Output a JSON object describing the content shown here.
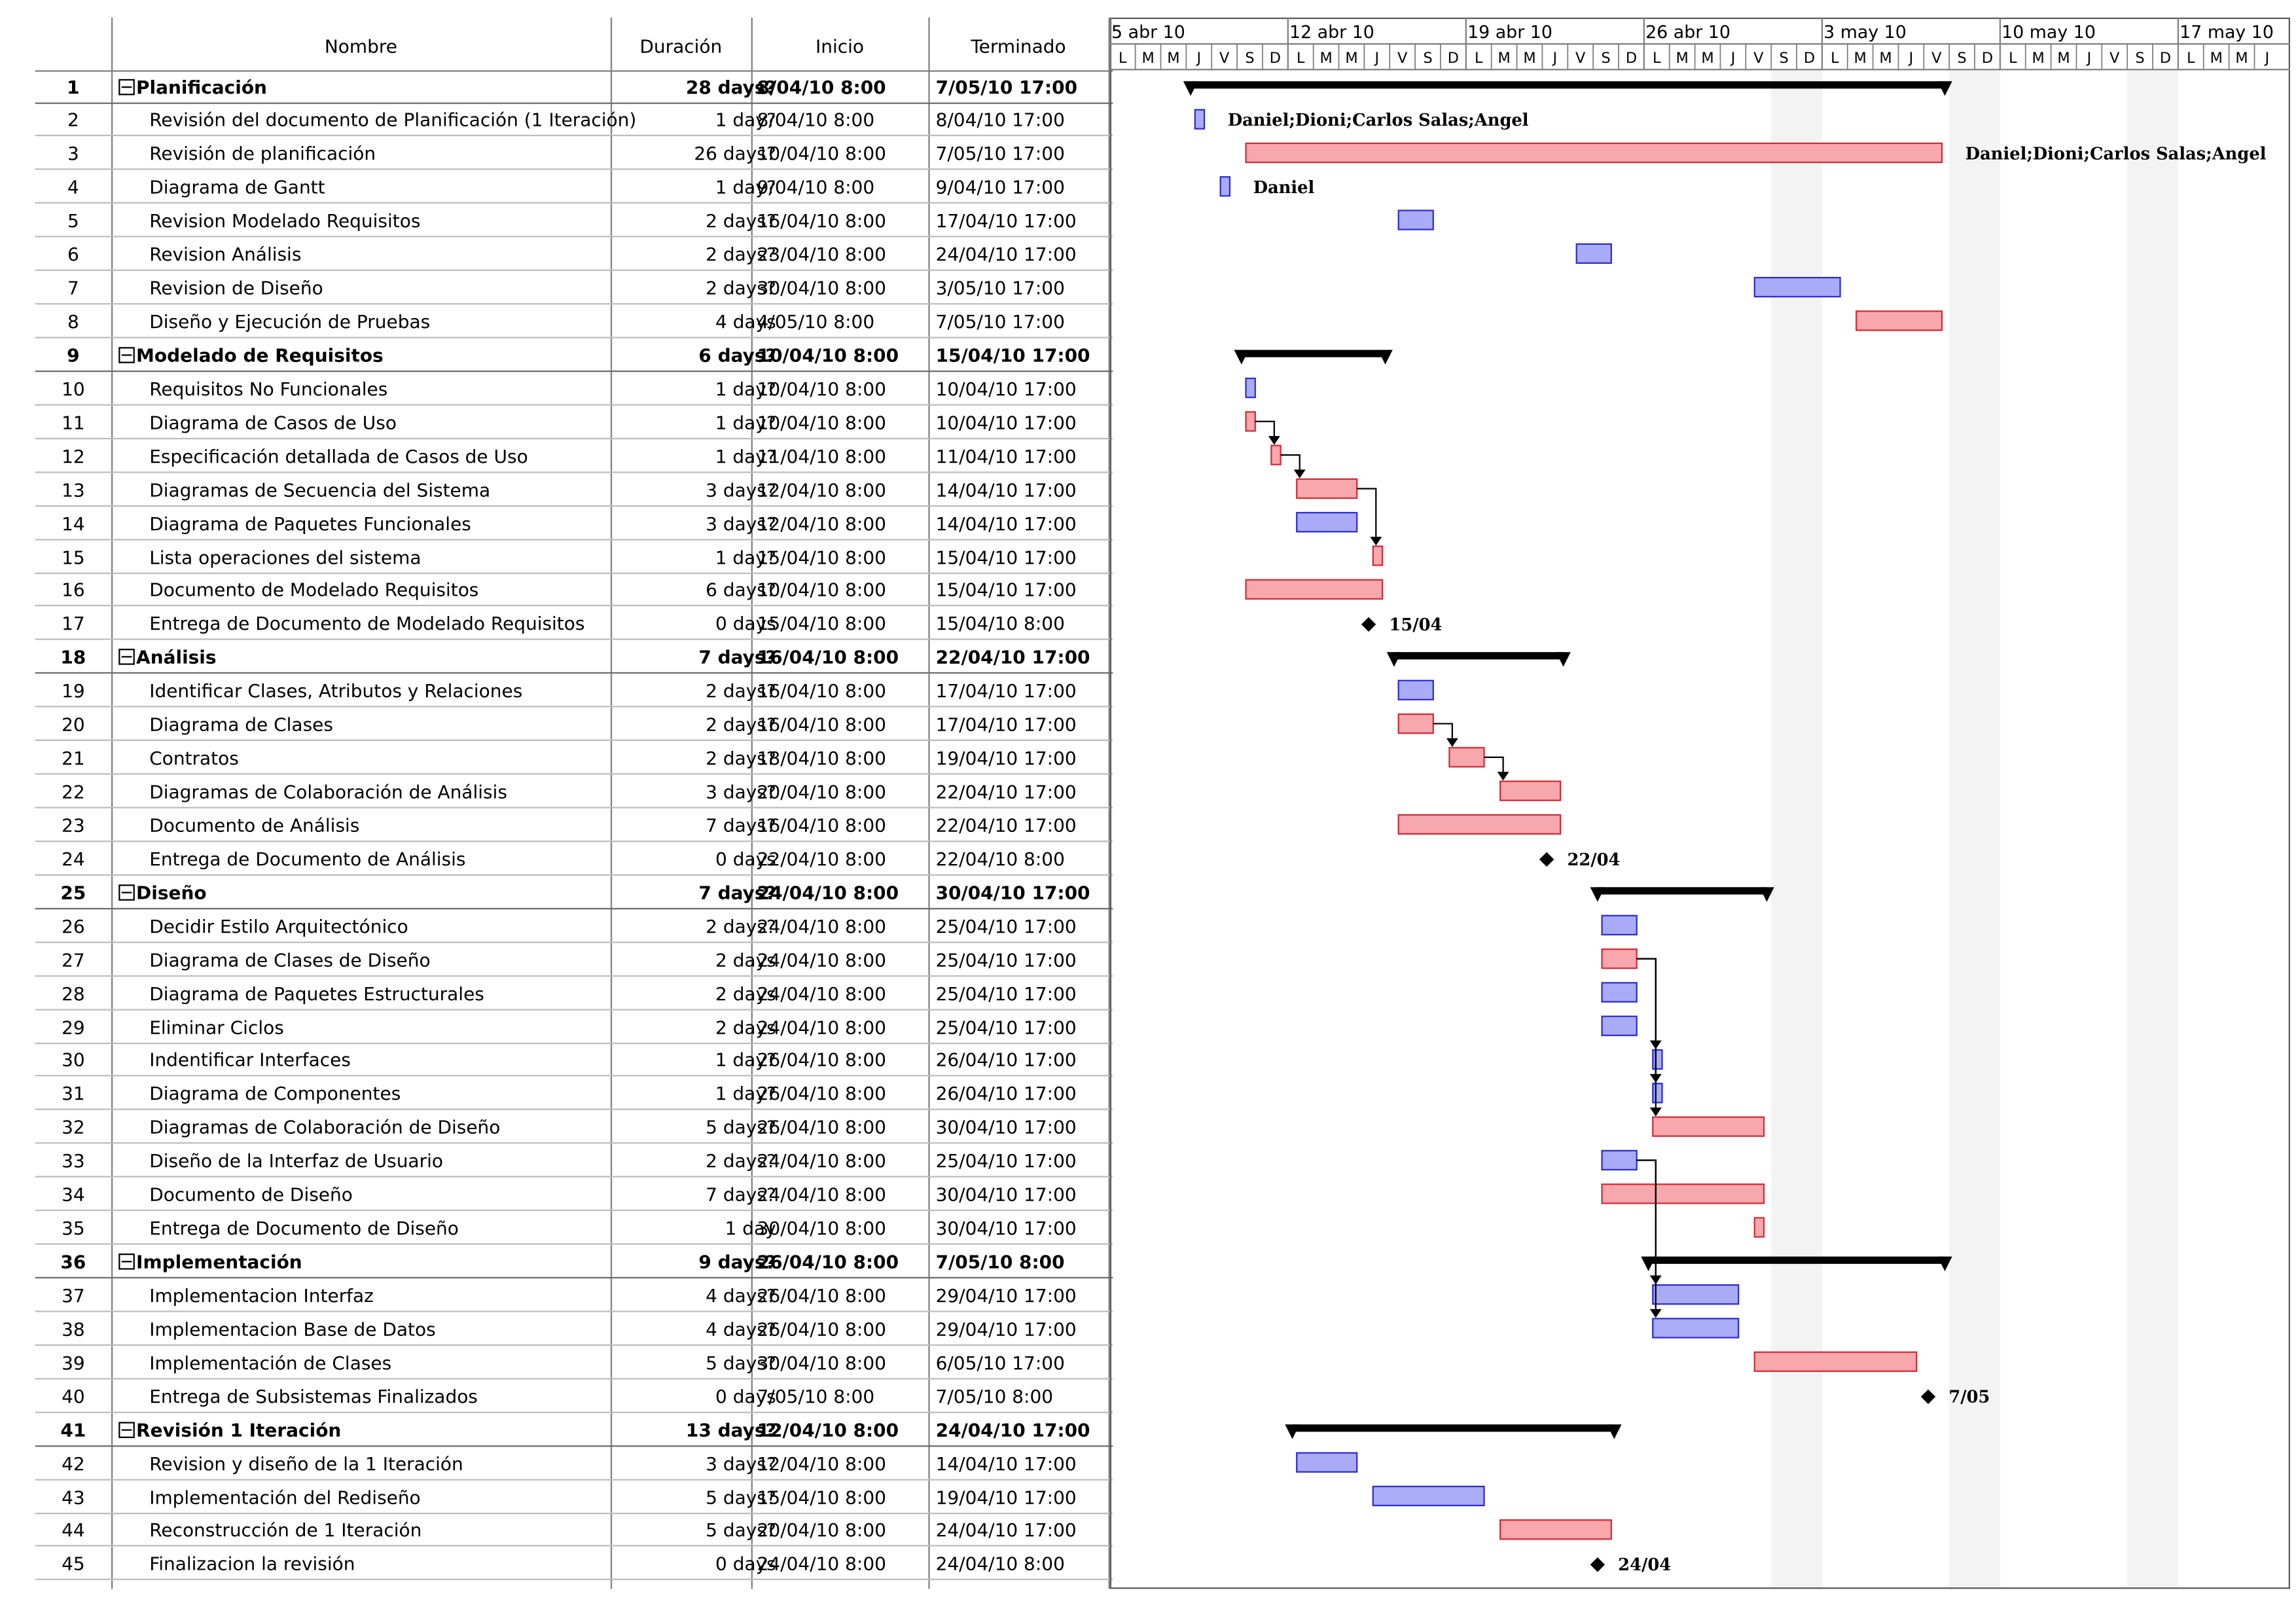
{
  "table": {
    "headers": {
      "name": "Nombre",
      "duration": "Duración",
      "start": "Inicio",
      "end": "Terminado"
    },
    "rows": [
      {
        "id": "1",
        "name": "Planificación",
        "duration": "28 days?",
        "start": "8/04/10 8:00",
        "end": "7/05/10 17:00",
        "summary": true
      },
      {
        "id": "2",
        "name": "Revisión del documento de Planificación (1 Iteración)",
        "duration": "1 day?",
        "start": "8/04/10 8:00",
        "end": "8/04/10 17:00"
      },
      {
        "id": "3",
        "name": "Revisión de planificación",
        "duration": "26 days?",
        "start": "10/04/10 8:00",
        "end": "7/05/10 17:00"
      },
      {
        "id": "4",
        "name": "Diagrama de Gantt",
        "duration": "1 day?",
        "start": "9/04/10 8:00",
        "end": "9/04/10 17:00"
      },
      {
        "id": "5",
        "name": "Revision Modelado Requisitos",
        "duration": "2 days?",
        "start": "16/04/10 8:00",
        "end": "17/04/10 17:00"
      },
      {
        "id": "6",
        "name": "Revision Análisis",
        "duration": "2 days?",
        "start": "23/04/10 8:00",
        "end": "24/04/10 17:00"
      },
      {
        "id": "7",
        "name": "Revision de Diseño",
        "duration": "2 days?",
        "start": "30/04/10 8:00",
        "end": "3/05/10 17:00"
      },
      {
        "id": "8",
        "name": "Diseño y Ejecución de Pruebas",
        "duration": "4 days",
        "start": "4/05/10 8:00",
        "end": "7/05/10 17:00"
      },
      {
        "id": "9",
        "name": "Modelado de Requisitos",
        "duration": "6 days?",
        "start": "10/04/10 8:00",
        "end": "15/04/10 17:00",
        "summary": true
      },
      {
        "id": "10",
        "name": "Requisitos No Funcionales",
        "duration": "1 day?",
        "start": "10/04/10 8:00",
        "end": "10/04/10 17:00"
      },
      {
        "id": "11",
        "name": "Diagrama de Casos de Uso",
        "duration": "1 day?",
        "start": "10/04/10 8:00",
        "end": "10/04/10 17:00"
      },
      {
        "id": "12",
        "name": "Especificación detallada de Casos de Uso",
        "duration": "1 day?",
        "start": "11/04/10 8:00",
        "end": "11/04/10 17:00"
      },
      {
        "id": "13",
        "name": "Diagramas de Secuencia del Sistema",
        "duration": "3 days?",
        "start": "12/04/10 8:00",
        "end": "14/04/10 17:00"
      },
      {
        "id": "14",
        "name": "Diagrama de Paquetes Funcionales",
        "duration": "3 days?",
        "start": "12/04/10 8:00",
        "end": "14/04/10 17:00"
      },
      {
        "id": "15",
        "name": "Lista operaciones del sistema",
        "duration": "1 day?",
        "start": "15/04/10 8:00",
        "end": "15/04/10 17:00"
      },
      {
        "id": "16",
        "name": "Documento de Modelado Requisitos",
        "duration": "6 days?",
        "start": "10/04/10 8:00",
        "end": "15/04/10 17:00"
      },
      {
        "id": "17",
        "name": "Entrega de Documento de Modelado Requisitos",
        "duration": "0 days",
        "start": "15/04/10 8:00",
        "end": "15/04/10 8:00"
      },
      {
        "id": "18",
        "name": "Análisis",
        "duration": "7 days?",
        "start": "16/04/10 8:00",
        "end": "22/04/10 17:00",
        "summary": true
      },
      {
        "id": "19",
        "name": "Identificar Clases, Atributos y Relaciones",
        "duration": "2 days?",
        "start": "16/04/10 8:00",
        "end": "17/04/10 17:00"
      },
      {
        "id": "20",
        "name": "Diagrama de Clases",
        "duration": "2 days?",
        "start": "16/04/10 8:00",
        "end": "17/04/10 17:00"
      },
      {
        "id": "21",
        "name": "Contratos",
        "duration": "2 days?",
        "start": "18/04/10 8:00",
        "end": "19/04/10 17:00"
      },
      {
        "id": "22",
        "name": "Diagramas de Colaboración de Análisis",
        "duration": "3 days?",
        "start": "20/04/10 8:00",
        "end": "22/04/10 17:00"
      },
      {
        "id": "23",
        "name": "Documento de Análisis",
        "duration": "7 days?",
        "start": "16/04/10 8:00",
        "end": "22/04/10 17:00"
      },
      {
        "id": "24",
        "name": "Entrega de Documento de Análisis",
        "duration": "0 days",
        "start": "22/04/10 8:00",
        "end": "22/04/10 8:00"
      },
      {
        "id": "25",
        "name": "Diseño",
        "duration": "7 days?",
        "start": "24/04/10 8:00",
        "end": "30/04/10 17:00",
        "summary": true
      },
      {
        "id": "26",
        "name": "Decidir Estilo Arquitectónico",
        "duration": "2 days?",
        "start": "24/04/10 8:00",
        "end": "25/04/10 17:00"
      },
      {
        "id": "27",
        "name": "Diagrama de Clases de Diseño",
        "duration": "2 days",
        "start": "24/04/10 8:00",
        "end": "25/04/10 17:00"
      },
      {
        "id": "28",
        "name": "Diagrama de Paquetes Estructurales",
        "duration": "2 days",
        "start": "24/04/10 8:00",
        "end": "25/04/10 17:00"
      },
      {
        "id": "29",
        "name": "Eliminar Ciclos",
        "duration": "2 days",
        "start": "24/04/10 8:00",
        "end": "25/04/10 17:00"
      },
      {
        "id": "30",
        "name": "Indentificar Interfaces",
        "duration": "1 day?",
        "start": "26/04/10 8:00",
        "end": "26/04/10 17:00"
      },
      {
        "id": "31",
        "name": "Diagrama de Componentes",
        "duration": "1 day?",
        "start": "26/04/10 8:00",
        "end": "26/04/10 17:00"
      },
      {
        "id": "32",
        "name": "Diagramas de Colaboración de Diseño",
        "duration": "5 days?",
        "start": "26/04/10 8:00",
        "end": "30/04/10 17:00"
      },
      {
        "id": "33",
        "name": "Diseño de la Interfaz de Usuario",
        "duration": "2 days?",
        "start": "24/04/10 8:00",
        "end": "25/04/10 17:00"
      },
      {
        "id": "34",
        "name": "Documento de Diseño",
        "duration": "7 days?",
        "start": "24/04/10 8:00",
        "end": "30/04/10 17:00"
      },
      {
        "id": "35",
        "name": "Entrega de Documento de Diseño",
        "duration": "1 day",
        "start": "30/04/10 8:00",
        "end": "30/04/10 17:00"
      },
      {
        "id": "36",
        "name": "Implementación",
        "duration": "9 days?",
        "start": "26/04/10 8:00",
        "end": "7/05/10 8:00",
        "summary": true
      },
      {
        "id": "37",
        "name": "Implementacion Interfaz",
        "duration": "4 days?",
        "start": "26/04/10 8:00",
        "end": "29/04/10 17:00"
      },
      {
        "id": "38",
        "name": "Implementacion Base de Datos",
        "duration": "4 days?",
        "start": "26/04/10 8:00",
        "end": "29/04/10 17:00"
      },
      {
        "id": "39",
        "name": "Implementación de Clases",
        "duration": "5 days?",
        "start": "30/04/10 8:00",
        "end": "6/05/10 17:00"
      },
      {
        "id": "40",
        "name": "Entrega de Subsistemas Finalizados",
        "duration": "0 days",
        "start": "7/05/10 8:00",
        "end": "7/05/10 8:00"
      },
      {
        "id": "41",
        "name": "Revisión 1 Iteración",
        "duration": "13 days?",
        "start": "12/04/10 8:00",
        "end": "24/04/10 17:00",
        "summary": true
      },
      {
        "id": "42",
        "name": "Revision y diseño de la 1 Iteración",
        "duration": "3 days?",
        "start": "12/04/10 8:00",
        "end": "14/04/10 17:00"
      },
      {
        "id": "43",
        "name": "Implementación del Rediseño",
        "duration": "5 days?",
        "start": "15/04/10 8:00",
        "end": "19/04/10 17:00"
      },
      {
        "id": "44",
        "name": "Reconstrucción de 1 Iteración",
        "duration": "5 days?",
        "start": "20/04/10 8:00",
        "end": "24/04/10 17:00"
      },
      {
        "id": "45",
        "name": "Finalizacion la revisión",
        "duration": "0 days",
        "start": "24/04/10 8:00",
        "end": "24/04/10 8:00"
      }
    ]
  },
  "timescale": {
    "weeks": [
      "5 abr 10",
      "12 abr 10",
      "19 abr 10",
      "26 abr 10",
      "3 may 10",
      "10 may 10",
      "17 may 10"
    ],
    "days": [
      "L",
      "M",
      "M",
      "J",
      "V",
      "S",
      "D"
    ]
  },
  "colors": {
    "blue_fill": "#a9abf7",
    "blue_stroke": "#2c2ccf",
    "red_fill": "#f8a8ad",
    "red_stroke": "#d42a36",
    "summary": "#000000",
    "weekend_shade": "#f3f3f3",
    "grid": "#7f7f7f"
  },
  "gantt": {
    "bars": [
      {
        "row": 1,
        "type": "summary",
        "start": "2010-04-08",
        "end": "2010-05-07"
      },
      {
        "row": 2,
        "type": "blue",
        "start": "2010-04-08",
        "end": "2010-04-08",
        "label": "Daniel;Dioni;Carlos Salas;Angel"
      },
      {
        "row": 3,
        "type": "red",
        "start": "2010-04-10",
        "end": "2010-05-07",
        "label": "Daniel;Dioni;Carlos Salas;Angel"
      },
      {
        "row": 4,
        "type": "blue",
        "start": "2010-04-09",
        "end": "2010-04-09",
        "label": "Daniel"
      },
      {
        "row": 5,
        "type": "blue",
        "start": "2010-04-16",
        "end": "2010-04-17"
      },
      {
        "row": 6,
        "type": "blue",
        "start": "2010-04-23",
        "end": "2010-04-24"
      },
      {
        "row": 7,
        "type": "blue",
        "start": "2010-04-30",
        "end": "2010-05-03"
      },
      {
        "row": 8,
        "type": "red",
        "start": "2010-05-04",
        "end": "2010-05-07"
      },
      {
        "row": 9,
        "type": "summary",
        "start": "2010-04-10",
        "end": "2010-04-15"
      },
      {
        "row": 10,
        "type": "blue",
        "start": "2010-04-10",
        "end": "2010-04-10"
      },
      {
        "row": 11,
        "type": "red",
        "start": "2010-04-10",
        "end": "2010-04-10"
      },
      {
        "row": 12,
        "type": "red",
        "start": "2010-04-11",
        "end": "2010-04-11"
      },
      {
        "row": 13,
        "type": "red",
        "start": "2010-04-12",
        "end": "2010-04-14"
      },
      {
        "row": 14,
        "type": "blue",
        "start": "2010-04-12",
        "end": "2010-04-14"
      },
      {
        "row": 15,
        "type": "red",
        "start": "2010-04-15",
        "end": "2010-04-15"
      },
      {
        "row": 16,
        "type": "red",
        "start": "2010-04-10",
        "end": "2010-04-15"
      },
      {
        "row": 17,
        "type": "milestone",
        "start": "2010-04-15",
        "label": "15/04"
      },
      {
        "row": 18,
        "type": "summary",
        "start": "2010-04-16",
        "end": "2010-04-22"
      },
      {
        "row": 19,
        "type": "blue",
        "start": "2010-04-16",
        "end": "2010-04-17"
      },
      {
        "row": 20,
        "type": "red",
        "start": "2010-04-16",
        "end": "2010-04-17"
      },
      {
        "row": 21,
        "type": "red",
        "start": "2010-04-18",
        "end": "2010-04-19"
      },
      {
        "row": 22,
        "type": "red",
        "start": "2010-04-20",
        "end": "2010-04-22"
      },
      {
        "row": 23,
        "type": "red",
        "start": "2010-04-16",
        "end": "2010-04-22"
      },
      {
        "row": 24,
        "type": "milestone",
        "start": "2010-04-22",
        "label": "22/04"
      },
      {
        "row": 25,
        "type": "summary",
        "start": "2010-04-24",
        "end": "2010-04-30"
      },
      {
        "row": 26,
        "type": "blue",
        "start": "2010-04-24",
        "end": "2010-04-25"
      },
      {
        "row": 27,
        "type": "red",
        "start": "2010-04-24",
        "end": "2010-04-25"
      },
      {
        "row": 28,
        "type": "blue",
        "start": "2010-04-24",
        "end": "2010-04-25"
      },
      {
        "row": 29,
        "type": "blue",
        "start": "2010-04-24",
        "end": "2010-04-25"
      },
      {
        "row": 30,
        "type": "blue",
        "start": "2010-04-26",
        "end": "2010-04-26"
      },
      {
        "row": 31,
        "type": "blue",
        "start": "2010-04-26",
        "end": "2010-04-26"
      },
      {
        "row": 32,
        "type": "red",
        "start": "2010-04-26",
        "end": "2010-04-30"
      },
      {
        "row": 33,
        "type": "blue",
        "start": "2010-04-24",
        "end": "2010-04-25"
      },
      {
        "row": 34,
        "type": "red",
        "start": "2010-04-24",
        "end": "2010-04-30"
      },
      {
        "row": 35,
        "type": "red",
        "start": "2010-04-30",
        "end": "2010-04-30"
      },
      {
        "row": 36,
        "type": "summary",
        "start": "2010-04-26",
        "end": "2010-05-07"
      },
      {
        "row": 37,
        "type": "blue",
        "start": "2010-04-26",
        "end": "2010-04-29"
      },
      {
        "row": 38,
        "type": "blue",
        "start": "2010-04-26",
        "end": "2010-04-29"
      },
      {
        "row": 39,
        "type": "red",
        "start": "2010-04-30",
        "end": "2010-05-06"
      },
      {
        "row": 40,
        "type": "milestone",
        "start": "2010-05-07",
        "label": "7/05"
      },
      {
        "row": 41,
        "type": "summary",
        "start": "2010-04-12",
        "end": "2010-04-24"
      },
      {
        "row": 42,
        "type": "blue",
        "start": "2010-04-12",
        "end": "2010-04-14"
      },
      {
        "row": 43,
        "type": "blue",
        "start": "2010-04-15",
        "end": "2010-04-19"
      },
      {
        "row": 44,
        "type": "red",
        "start": "2010-04-20",
        "end": "2010-04-24"
      },
      {
        "row": 45,
        "type": "milestone",
        "start": "2010-04-24",
        "label": "24/04"
      }
    ],
    "links": [
      {
        "from": 11,
        "to": 12
      },
      {
        "from": 12,
        "to": 13
      },
      {
        "from": 13,
        "to": 15
      },
      {
        "from": 20,
        "to": 21
      },
      {
        "from": 21,
        "to": 22
      },
      {
        "from": 27,
        "to": 30
      },
      {
        "from": 27,
        "to": 31
      },
      {
        "from": 27,
        "to": 32
      },
      {
        "from": 33,
        "to": 37
      },
      {
        "from": 33,
        "to": 38
      }
    ]
  }
}
